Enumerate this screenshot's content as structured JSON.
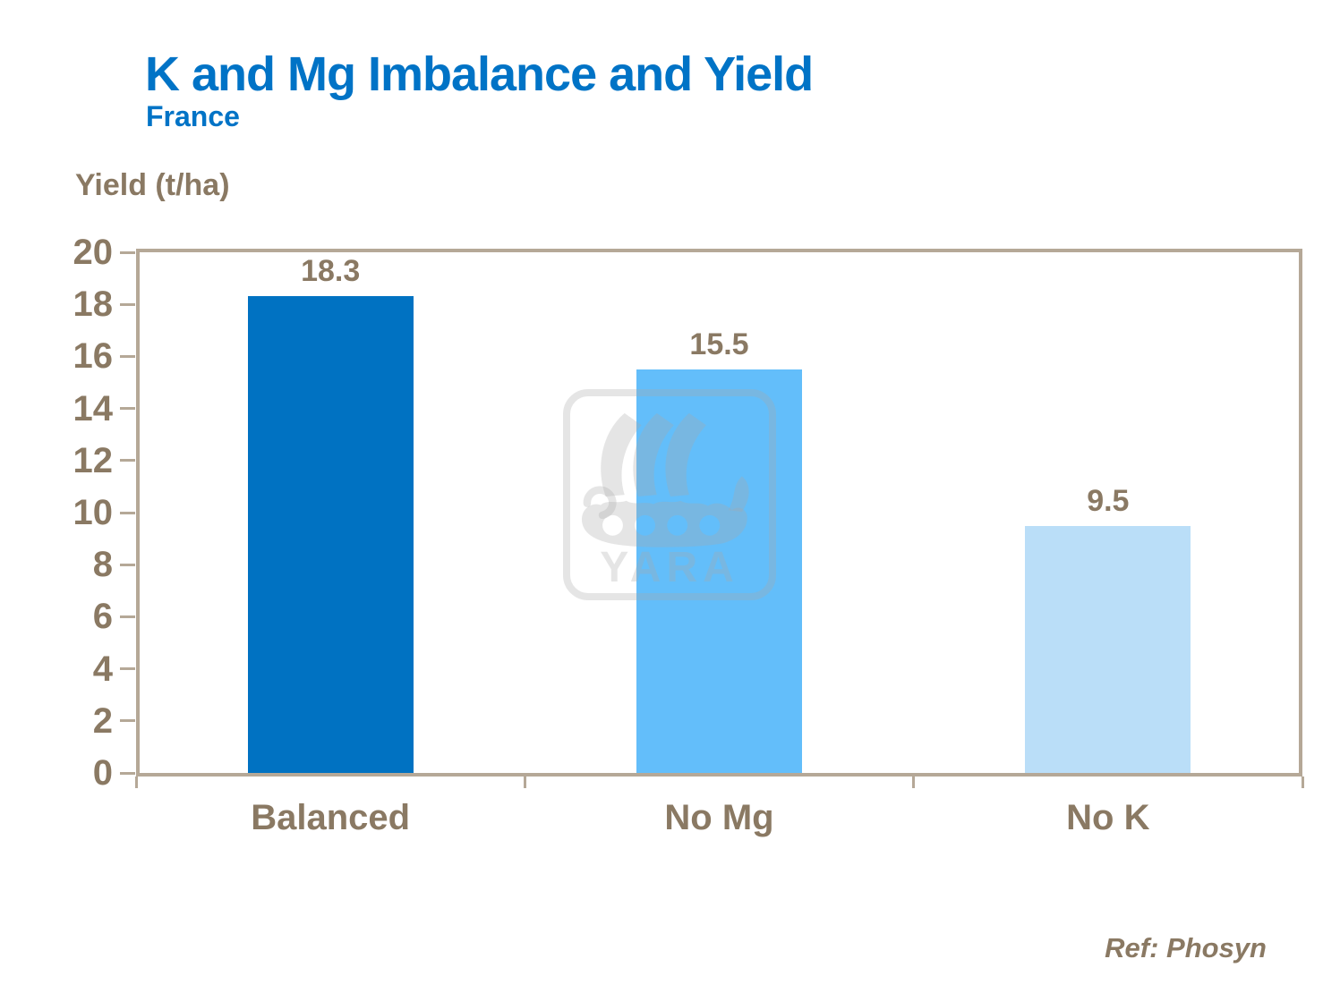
{
  "slide": {
    "title": "K and Mg Imbalance and Yield",
    "subtitle": "France",
    "y_axis_title": "Yield (t/ha)",
    "reference": "Ref: Phosyn"
  },
  "watermark": {
    "text": "YARA",
    "icon": "yara-viking-ship-logo"
  },
  "colors": {
    "title_blue": "#0073C6",
    "text_brown": "#8A7963",
    "axis_tan": "#B5A897",
    "background": "#FFFFFF",
    "bar_balanced": "#0072C2",
    "bar_no_mg": "#63BEFA",
    "bar_no_k": "#BADEF8"
  },
  "chart_data": {
    "type": "bar",
    "title": "K and Mg Imbalance and Yield",
    "subtitle": "France",
    "ylabel": "Yield (t/ha)",
    "xlabel": "",
    "categories": [
      "Balanced",
      "No Mg",
      "No K"
    ],
    "values": [
      18.3,
      15.5,
      9.5
    ],
    "data_labels": [
      "18.3",
      "15.5",
      "9.5"
    ],
    "ylim": [
      0,
      20
    ],
    "yticks": [
      0,
      2,
      4,
      6,
      8,
      10,
      12,
      14,
      16,
      18,
      20
    ],
    "grid": false,
    "legend": "none",
    "bar_colors": [
      "#0072C2",
      "#63BEFA",
      "#BADEF8"
    ],
    "annotation": "Ref: Phosyn"
  }
}
